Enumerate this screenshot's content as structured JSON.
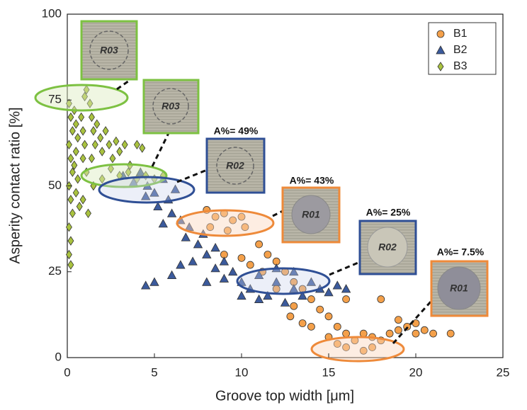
{
  "chart_data": {
    "type": "scatter",
    "x_label": "Groove top width [μm]",
    "y_label": "Asperity contact ratio [%]",
    "xlim": [
      0,
      25
    ],
    "xticks": [
      0,
      5,
      10,
      15,
      20,
      25
    ],
    "ylim": [
      0,
      100
    ],
    "yticks": [
      0,
      25,
      50,
      75,
      100
    ],
    "legend": "upper right",
    "series": [
      {
        "name": "B1",
        "color": "#f4a04a",
        "marker": "circle",
        "x": [
          8.0,
          8.5,
          9.0,
          9.5,
          10.0,
          8.2,
          9.2,
          10.2,
          9.0,
          10.0,
          11.0,
          11.5,
          12.0,
          10.5,
          11.2,
          12.5,
          13.0,
          12.0,
          13.5,
          14.0,
          13.0,
          14.5,
          15.0,
          12.8,
          13.5,
          14.0,
          15.5,
          16.0,
          15.0,
          16.5,
          17.0,
          17.5,
          16.0,
          17.0,
          18.0,
          18.5,
          19.0,
          19.5,
          20.0,
          20.5,
          21.0,
          22.0,
          20.0,
          18.0,
          16.0,
          19.0,
          17.5,
          15.5
        ],
        "values": [
          43,
          41,
          42,
          40,
          41,
          38,
          37,
          38,
          30,
          29,
          33,
          30,
          28,
          27,
          25,
          25,
          22,
          20,
          20,
          17,
          15,
          14,
          12,
          12,
          10,
          9,
          9,
          7,
          6,
          5,
          7,
          6,
          3,
          2,
          5,
          7,
          8,
          9,
          7,
          8,
          7,
          7,
          10,
          17,
          17,
          11,
          3,
          4
        ]
      },
      {
        "name": "B2",
        "color": "#3b5a9c",
        "marker": "triangle",
        "x": [
          3.2,
          3.8,
          4.2,
          4.6,
          5.0,
          5.5,
          5.8,
          6.2,
          4.5,
          5.2,
          6.0,
          6.5,
          7.0,
          5.5,
          6.8,
          7.5,
          8.0,
          7.2,
          6.5,
          8.5,
          9.0,
          5.0,
          4.5,
          6.0,
          8.0,
          9.5,
          10.0,
          10.5,
          11.0,
          11.5,
          12.0,
          12.5,
          13.0,
          13.5,
          14.0,
          14.5,
          15.0,
          15.5,
          16.0,
          12.0,
          13.0,
          9.0,
          8.5,
          7.8,
          10.0,
          11.0
        ],
        "values": [
          53,
          51,
          54,
          50,
          48,
          52,
          46,
          49,
          47,
          44,
          42,
          40,
          38,
          39,
          35,
          33,
          30,
          28,
          27,
          26,
          23,
          22,
          21,
          24,
          22,
          25,
          22,
          20,
          24,
          18,
          22,
          16,
          20,
          18,
          22,
          20,
          19,
          21,
          20,
          26,
          25,
          28,
          32,
          36,
          18,
          17
        ]
      },
      {
        "name": "B3",
        "color": "#a9c23f",
        "marker": "diamond",
        "x": [
          0.1,
          0.2,
          0.3,
          0.1,
          0.2,
          0.3,
          0.1,
          0.2,
          0.3,
          0.1,
          0.2,
          0.1,
          0.2,
          0.4,
          0.5,
          0.6,
          0.5,
          0.4,
          0.6,
          0.5,
          0.7,
          0.8,
          0.9,
          1.0,
          1.1,
          1.0,
          0.9,
          1.1,
          0.9,
          1.2,
          1.3,
          1.4,
          1.5,
          1.6,
          1.4,
          1.7,
          1.9,
          2.0,
          2.2,
          2.4,
          2.6,
          2.8,
          3.0,
          3.3,
          3.6,
          4.0,
          4.3,
          2.5,
          3.0,
          3.5,
          4.0,
          4.5,
          5.0,
          5.5,
          2.0,
          1.5
        ],
        "values": [
          74,
          70,
          66,
          62,
          58,
          54,
          50,
          46,
          42,
          38,
          34,
          30,
          27,
          72,
          68,
          64,
          60,
          56,
          52,
          48,
          44,
          70,
          66,
          62,
          78,
          76,
          58,
          54,
          46,
          42,
          74,
          70,
          66,
          62,
          58,
          68,
          64,
          60,
          66,
          62,
          58,
          63,
          60,
          62,
          56,
          62,
          61,
          55,
          53,
          54,
          52,
          53,
          52,
          53,
          52,
          50
        ]
      }
    ],
    "annotations": [
      {
        "inset": "R03"
      },
      {
        "inset": "R03"
      },
      {
        "inset": "R02",
        "text": "A%= 49%"
      },
      {
        "inset": "R01",
        "text": "A%= 43%"
      },
      {
        "inset": "R02",
        "text": "A%= 25%"
      },
      {
        "inset": "R01",
        "text": "A%= 7.5%"
      }
    ]
  }
}
